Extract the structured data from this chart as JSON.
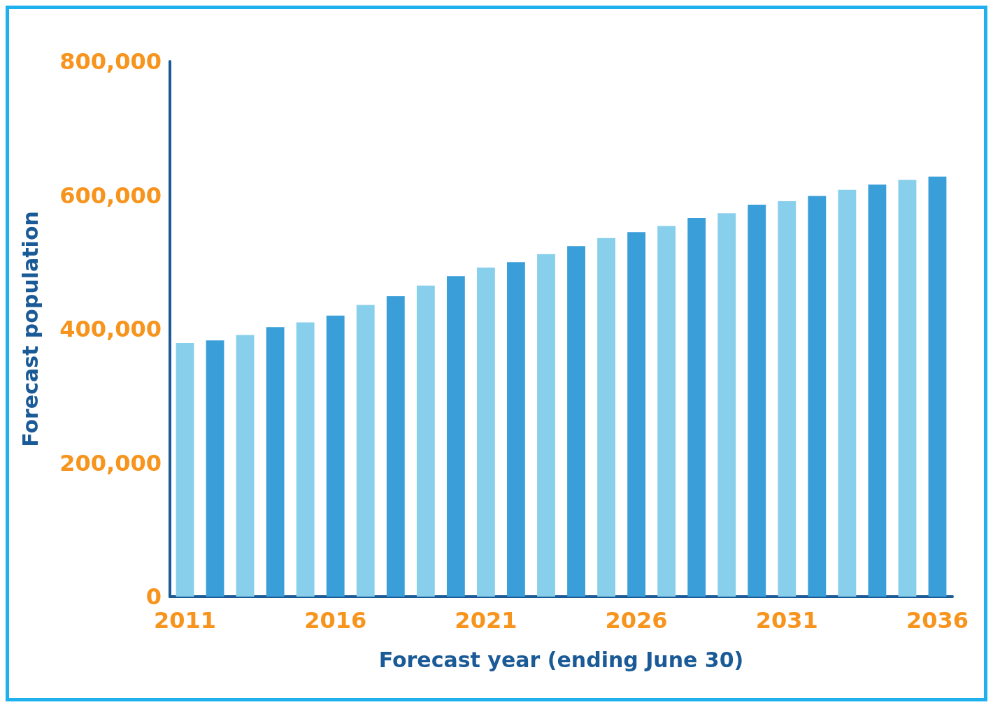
{
  "chart_data": {
    "type": "bar",
    "xlabel": "Forecast year (ending June 30)",
    "ylabel": "Forecast population",
    "categories": [
      "2011",
      null,
      null,
      null,
      null,
      "2016",
      null,
      null,
      null,
      null,
      "2021",
      null,
      null,
      null,
      null,
      "2026",
      null,
      null,
      null,
      null,
      "2031",
      null,
      null,
      null,
      null,
      "2036"
    ],
    "values": [
      379000,
      383000,
      391000,
      403000,
      410000,
      420000,
      436000,
      449000,
      465000,
      479000,
      492000,
      500000,
      512000,
      524000,
      536000,
      545000,
      554000,
      566000,
      573000,
      586000,
      591000,
      599000,
      608000,
      616000,
      623000,
      628000
    ],
    "colors": [
      "#87cfeb",
      "#3a9ed8",
      "#87cfeb",
      "#3a9ed8",
      "#87cfeb",
      "#3a9ed8",
      "#87cfeb",
      "#3a9ed8",
      "#87cfeb",
      "#3a9ed8",
      "#87cfeb",
      "#3a9ed8",
      "#87cfeb",
      "#3a9ed8",
      "#87cfeb",
      "#3a9ed8",
      "#87cfeb",
      "#3a9ed8",
      "#87cfeb",
      "#3a9ed8",
      "#87cfeb",
      "#3a9ed8",
      "#87cfeb",
      "#3a9ed8",
      "#87cfeb",
      "#3a9ed8"
    ],
    "ylim": [
      0,
      800000
    ],
    "yticks": [
      0,
      {
        "value": 200000,
        "label": "200,000"
      },
      {
        "value": 400000,
        "label": "400,000"
      },
      {
        "value": 600000,
        "label": "600,000"
      },
      {
        "value": 800000,
        "label": "800,000"
      }
    ],
    "grid": false
  }
}
